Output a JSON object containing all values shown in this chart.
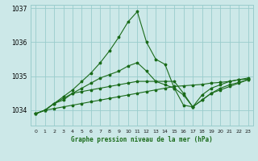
{
  "title": "Graphe pression niveau de la mer (hPa)",
  "background_color": "#cce8e8",
  "grid_color": "#99cccc",
  "line_color1": "#1a6b1a",
  "line_color2": "#1a6b1a",
  "x_labels": [
    "0",
    "1",
    "2",
    "3",
    "4",
    "5",
    "6",
    "7",
    "8",
    "9",
    "10",
    "11",
    "12",
    "13",
    "14",
    "15",
    "16",
    "17",
    "18",
    "19",
    "20",
    "21",
    "22",
    "23"
  ],
  "ylim": [
    1033.55,
    1037.1
  ],
  "yticks": [
    1034,
    1035,
    1036,
    1037
  ],
  "series_flat": [
    1033.9,
    1034.0,
    1034.05,
    1034.1,
    1034.15,
    1034.2,
    1034.25,
    1034.3,
    1034.35,
    1034.4,
    1034.45,
    1034.5,
    1034.55,
    1034.6,
    1034.65,
    1034.7,
    1034.72,
    1034.74,
    1034.76,
    1034.8,
    1034.82,
    1034.85,
    1034.9,
    1034.92
  ],
  "series_mid1": [
    1033.9,
    1034.0,
    1034.2,
    1034.3,
    1034.5,
    1034.55,
    1034.6,
    1034.65,
    1034.7,
    1034.75,
    1034.8,
    1034.85,
    1034.85,
    1034.85,
    1034.85,
    1034.85,
    1034.5,
    1034.1,
    1034.3,
    1034.5,
    1034.6,
    1034.7,
    1034.8,
    1034.9
  ],
  "series_mid2": [
    1033.9,
    1034.0,
    1034.2,
    1034.35,
    1034.5,
    1034.65,
    1034.8,
    1034.95,
    1035.05,
    1035.15,
    1035.3,
    1035.4,
    1035.15,
    1034.85,
    1034.75,
    1034.65,
    1034.45,
    1034.1,
    1034.3,
    1034.5,
    1034.65,
    1034.75,
    1034.82,
    1034.9
  ],
  "series_peak": [
    1033.9,
    1034.0,
    1034.2,
    1034.4,
    1034.6,
    1034.85,
    1035.1,
    1035.4,
    1035.75,
    1036.15,
    1036.6,
    1036.9,
    1036.0,
    1035.5,
    1035.35,
    1034.65,
    1034.15,
    1034.1,
    1034.45,
    1034.65,
    1034.75,
    1034.85,
    1034.9,
    1034.95
  ]
}
